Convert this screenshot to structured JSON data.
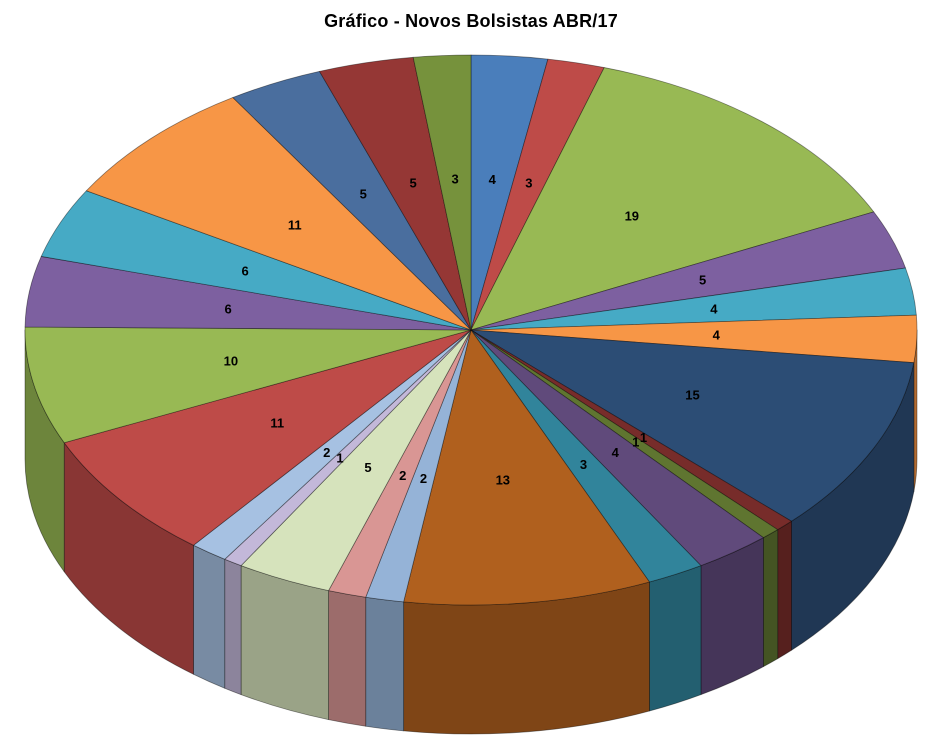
{
  "page": {
    "background": "#FFFFFF"
  },
  "header": {
    "title": "Gráfico - Novos Bolsistas ABR/17"
  },
  "chart_data": {
    "type": "pie",
    "title": "Gráfico - Novos Bolsistas ABR/17",
    "style_3d": true,
    "start_angle_deg": -90,
    "direction": "clockwise",
    "legend_position": "none",
    "data_labels": "value-inside",
    "total": 145,
    "values": [
      4,
      3,
      19,
      5,
      4,
      4,
      15,
      1,
      1,
      4,
      3,
      13,
      2,
      2,
      5,
      1,
      2,
      11,
      10,
      6,
      6,
      11,
      5,
      5,
      3
    ],
    "colors": [
      "#4A7EBB",
      "#BE4B48",
      "#98B954",
      "#7D60A0",
      "#46AAC5",
      "#F79646",
      "#2C4D75",
      "#772C2A",
      "#5F7530",
      "#604A7B",
      "#31849B",
      "#B0601E",
      "#95B3D7",
      "#D99694",
      "#D6E3BC",
      "#C3B8D9",
      "#A6C1E2",
      "#BE4B48",
      "#98B954",
      "#7D60A0",
      "#46AAC5",
      "#F79646",
      "#4A6E9E",
      "#953735",
      "#76923C"
    ],
    "label_color": "#000000",
    "outline_color": "rgba(0,0,0,0.45)"
  }
}
